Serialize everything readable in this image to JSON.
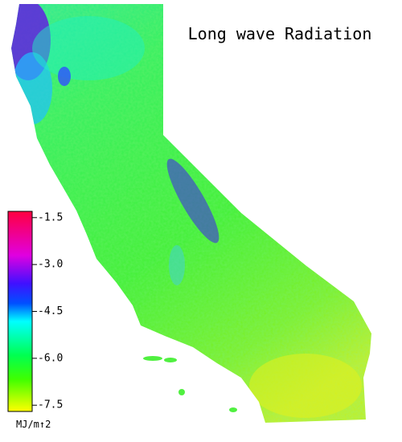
{
  "title": "Long wave Radiation",
  "colorbar": {
    "lim": [
      -1.3,
      -7.7
    ],
    "ticks": [
      -1.5,
      {
        "value": -3,
        "label": "-3.0"
      },
      -4.5,
      {
        "value": -6,
        "label": "-6.0"
      },
      -7.5
    ],
    "label": "MJ/m↑2"
  }
}
